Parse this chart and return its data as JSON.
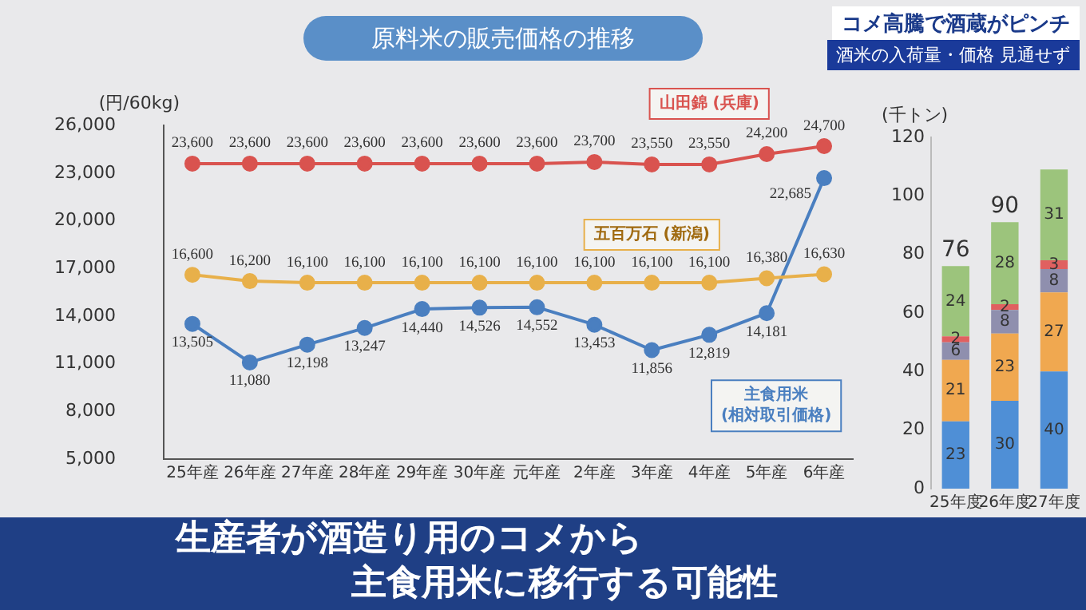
{
  "chart_data": [
    {
      "type": "line",
      "title": "原料米の販売価格の推移",
      "ylabel": "(円/60kg)",
      "categories": [
        "25年産",
        "26年産",
        "27年産",
        "28年産",
        "29年産",
        "30年産",
        "元年産",
        "2年産",
        "3年産",
        "4年産",
        "5年産",
        "6年産"
      ],
      "series": [
        {
          "name": "山田錦 (兵庫)",
          "color": "#d9534f",
          "values": [
            23600,
            23600,
            23600,
            23600,
            23600,
            23600,
            23600,
            23700,
            23550,
            23550,
            24200,
            24700
          ],
          "value_labels": [
            "23,600",
            "23,600",
            "23,600",
            "23,600",
            "23,600",
            "23,600",
            "23,600",
            "23,700",
            "23,550",
            "23,550",
            "24,200",
            "24,700"
          ]
        },
        {
          "name": "五百万石 (新潟)",
          "color": "#e8b04a",
          "values": [
            16600,
            16200,
            16100,
            16100,
            16100,
            16100,
            16100,
            16100,
            16100,
            16100,
            16380,
            16630
          ],
          "value_labels": [
            "16,600",
            "16,200",
            "16,100",
            "16,100",
            "16,100",
            "16,100",
            "16,100",
            "16,100",
            "16,100",
            "16,100",
            "16,380",
            "16,630"
          ]
        },
        {
          "name": "主食用米 (相対取引価格)",
          "color": "#4a7fc0",
          "values": [
            13505,
            11080,
            12198,
            13247,
            14440,
            14526,
            14552,
            13453,
            11856,
            12819,
            14181,
            22685
          ],
          "value_labels": [
            "13,505",
            "11,080",
            "12,198",
            "13,247",
            "14,440",
            "14,526",
            "14,552",
            "13,453",
            "11,856",
            "12,819",
            "14,181",
            "22,685"
          ]
        }
      ],
      "ylim": [
        5000,
        26000
      ],
      "yticks": [
        {
          "value": 5000,
          "label": "5,000"
        },
        {
          "value": 8000,
          "label": "8,000"
        },
        {
          "value": 11000,
          "label": "11,000"
        },
        {
          "value": 14000,
          "label": "14,000"
        },
        {
          "value": 17000,
          "label": "17,000"
        },
        {
          "value": 20000,
          "label": "20,000"
        },
        {
          "value": 23000,
          "label": "23,000"
        },
        {
          "value": 26000,
          "label": "26,000"
        }
      ],
      "grid": false,
      "legend": false,
      "marker": "circle",
      "line_style": "solid",
      "annotations": [
        "コメ高騰で酒蔵がピンチ",
        "酒米の入荷量・価格 見通せず",
        "生産者が酒造り用のコメから",
        "主食用米に移行する可能性"
      ]
    },
    {
      "type": "bar",
      "stacked": true,
      "ylabel": "(千トン)",
      "categories": [
        "25年度",
        "26年度",
        "27年度"
      ],
      "series": [
        {
          "color": "#4f8fd6",
          "values": [
            23,
            30,
            40
          ]
        },
        {
          "color": "#f0a850",
          "values": [
            21,
            23,
            27
          ]
        },
        {
          "color": "#8f8fae",
          "values": [
            6,
            8,
            8
          ]
        },
        {
          "color": "#e06060",
          "values": [
            2,
            2,
            3
          ]
        },
        {
          "color": "#9cc47c",
          "values": [
            24,
            28,
            31
          ]
        }
      ],
      "ylim": [
        0,
        120
      ],
      "yticks": [
        0,
        20,
        40,
        60,
        80,
        100,
        120
      ],
      "grid": false,
      "legend": false,
      "data_labels": true,
      "totals": [
        "76",
        "90",
        null
      ]
    }
  ]
}
